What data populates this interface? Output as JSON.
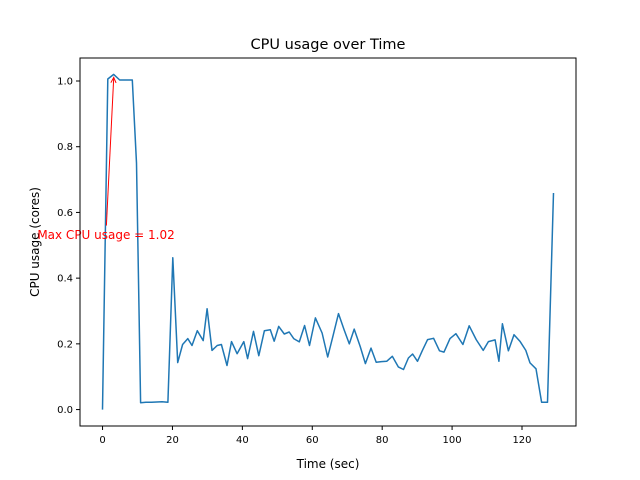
{
  "chart_data": {
    "type": "line",
    "title": "CPU usage over Time",
    "xlabel": "Time (sec)",
    "ylabel": "CPU usage (cores)",
    "xlim": [
      -6.45,
      135.45
    ],
    "ylim": [
      -0.05,
      1.07
    ],
    "xticks": [
      0,
      20,
      40,
      60,
      80,
      100,
      120
    ],
    "xtick_labels": [
      "0",
      "20",
      "40",
      "60",
      "80",
      "100",
      "120"
    ],
    "yticks": [
      0.0,
      0.2,
      0.4,
      0.6,
      0.8,
      1.0
    ],
    "ytick_labels": [
      "0.0",
      "0.2",
      "0.4",
      "0.6",
      "0.8",
      "1.0"
    ],
    "grid": false,
    "series": [
      {
        "color": "#1f77b4",
        "x": [
          0,
          1.5,
          3.2,
          4.9,
          8.5,
          9.7,
          10.9,
          12.4,
          14,
          15.5,
          17,
          18.7,
          20.1,
          21.5,
          22.9,
          24.4,
          25.6,
          27.1,
          28.8,
          29.9,
          31.3,
          32.8,
          34,
          35.6,
          36.9,
          38.5,
          40.4,
          41.5,
          43.2,
          44.7,
          46.3,
          48,
          49.1,
          50.4,
          52,
          53.4,
          54.7,
          56.3,
          57.8,
          59.2,
          60.9,
          62.8,
          64.4,
          65.9,
          67.5,
          69.1,
          70.6,
          72,
          73.7,
          75.2,
          76.8,
          78.3,
          79.8,
          81.3,
          82.9,
          84.6,
          86.1,
          87.5,
          88.7,
          90.1,
          91.5,
          93,
          94.7,
          96.4,
          97.7,
          99.4,
          101.1,
          103.1,
          104.9,
          106.9,
          108.9,
          110.4,
          112.3,
          113.4,
          114.4,
          116.1,
          117.7,
          119.4,
          121.1,
          122.3,
          124,
          125.6,
          127.3,
          129
        ],
        "y": [
          0.0,
          1.006,
          1.02,
          1.003,
          1.003,
          0.75,
          0.021,
          0.022,
          0.022,
          0.023,
          0.024,
          0.022,
          0.462,
          0.143,
          0.198,
          0.216,
          0.195,
          0.24,
          0.21,
          0.307,
          0.18,
          0.195,
          0.198,
          0.134,
          0.207,
          0.17,
          0.207,
          0.155,
          0.238,
          0.164,
          0.24,
          0.243,
          0.208,
          0.253,
          0.23,
          0.236,
          0.216,
          0.206,
          0.256,
          0.195,
          0.279,
          0.233,
          0.16,
          0.223,
          0.292,
          0.243,
          0.2,
          0.245,
          0.192,
          0.14,
          0.187,
          0.144,
          0.146,
          0.147,
          0.162,
          0.13,
          0.122,
          0.157,
          0.169,
          0.147,
          0.18,
          0.213,
          0.217,
          0.179,
          0.175,
          0.216,
          0.231,
          0.198,
          0.255,
          0.213,
          0.18,
          0.207,
          0.212,
          0.147,
          0.261,
          0.179,
          0.228,
          0.208,
          0.18,
          0.142,
          0.124,
          0.022,
          0.022,
          0.659
        ]
      }
    ],
    "annotations": [
      {
        "text": "Max CPU usage = 1.02",
        "color": "#ff0000",
        "xy": [
          3.2,
          1.02
        ],
        "xytext": [
          1,
          0.535
        ]
      }
    ]
  }
}
